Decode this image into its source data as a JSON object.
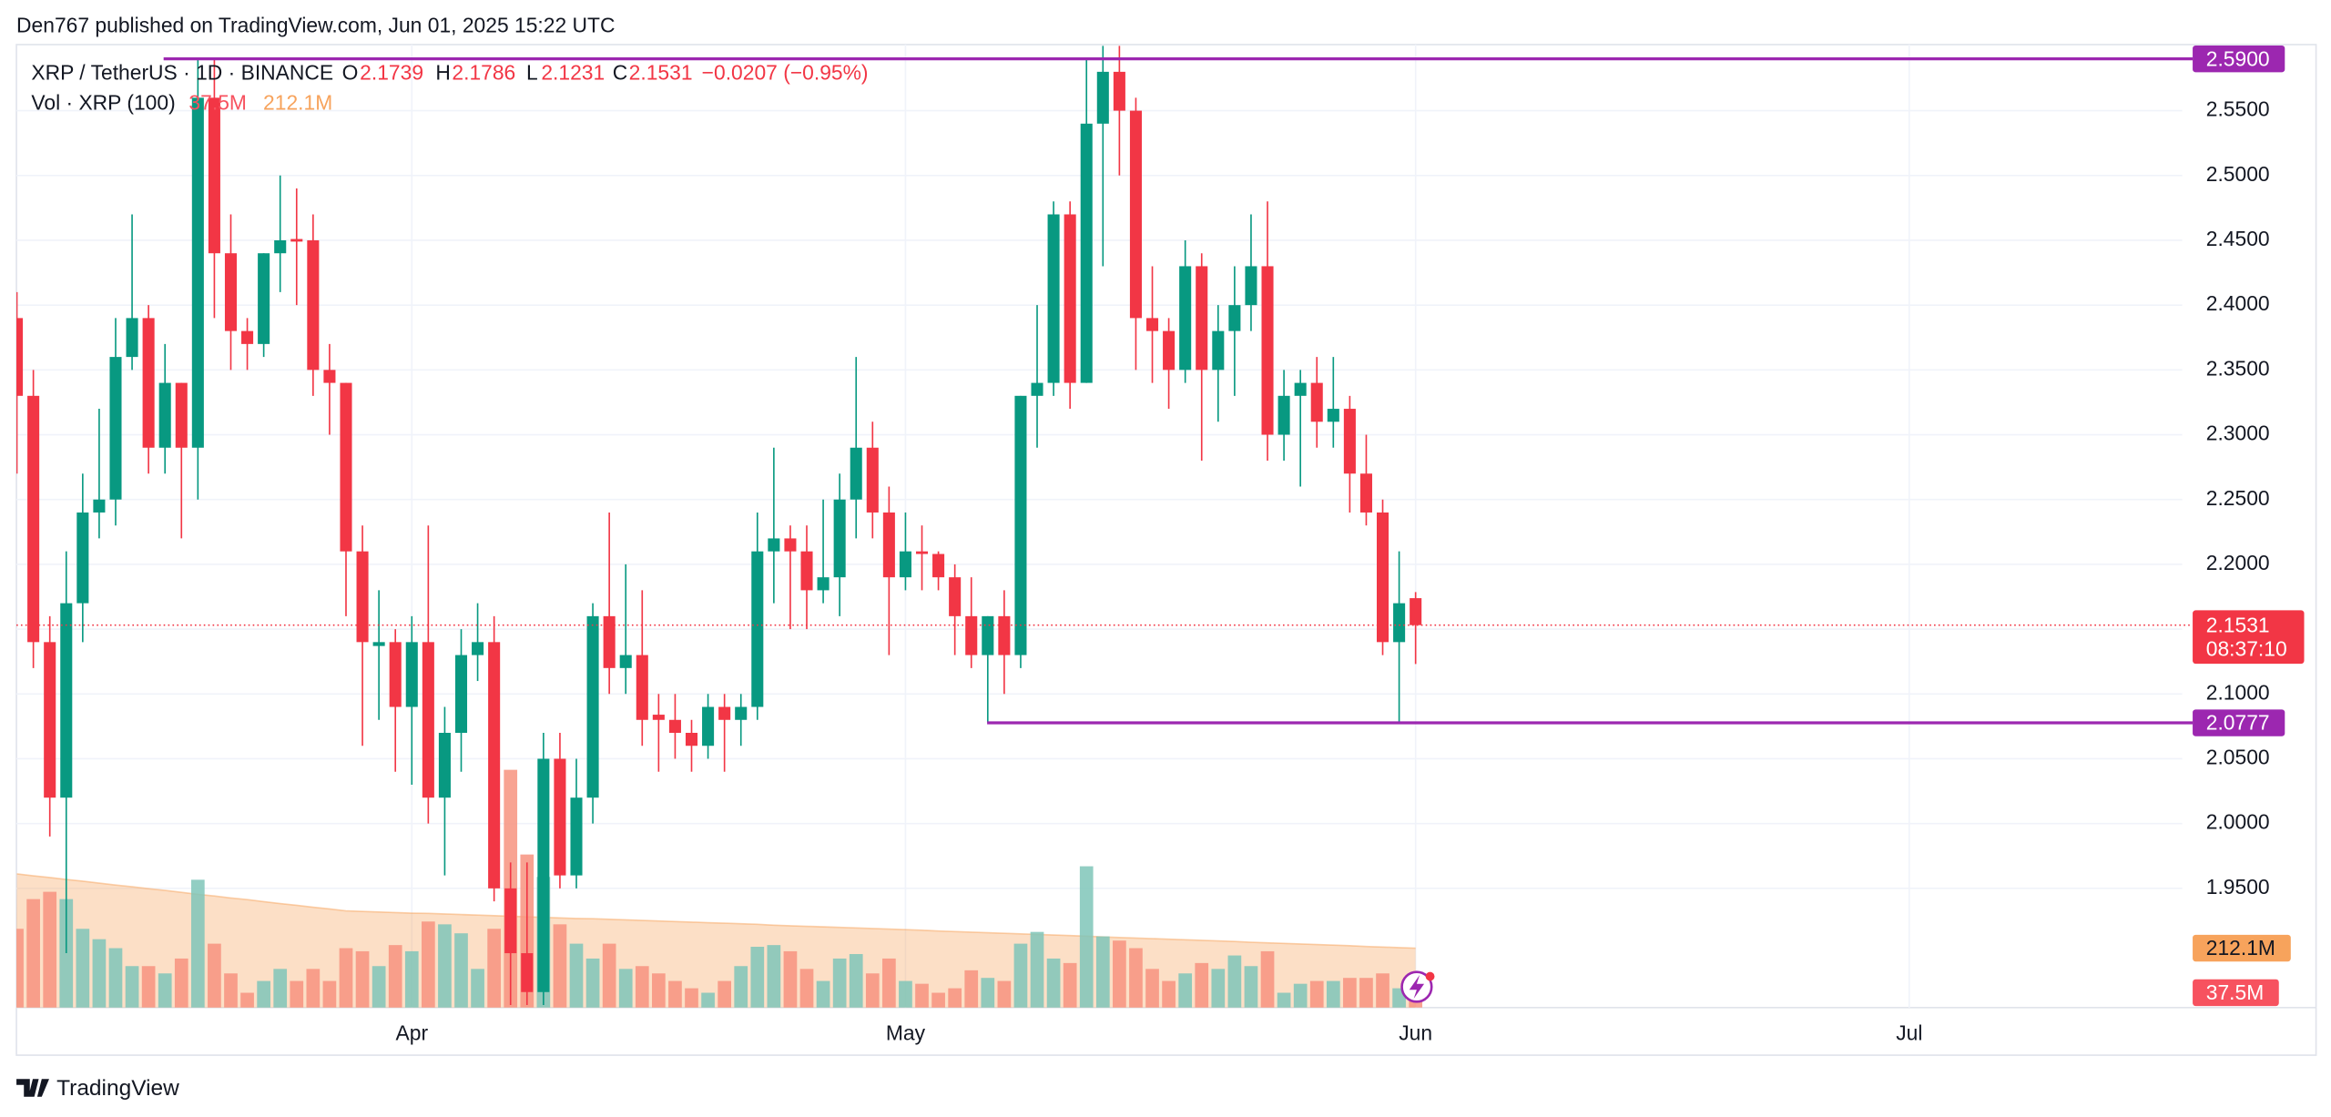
{
  "header": {
    "text": "Den767 published on TradingView.com, Jun 01, 2025 15:22 UTC"
  },
  "footer": {
    "brand": "TradingView"
  },
  "chart_data": {
    "type": "candlestick",
    "title": "XRP / TetherUS · 1D · BINANCE",
    "ohlc_letters": [
      "O",
      "H",
      "L",
      "C"
    ],
    "change_label": "−0.0207 (−0.95%)",
    "categories": [
      null,
      null,
      null,
      null,
      null,
      null,
      null,
      null,
      null,
      null,
      null,
      null,
      null,
      null,
      null,
      null,
      null,
      null,
      null,
      null,
      null,
      null,
      null,
      null,
      "Apr",
      null,
      null,
      null,
      null,
      null,
      null,
      null,
      null,
      null,
      null,
      null,
      null,
      null,
      null,
      null,
      null,
      null,
      null,
      null,
      null,
      null,
      null,
      null,
      null,
      null,
      null,
      null,
      null,
      null,
      "May",
      null,
      null,
      null,
      null,
      null,
      null,
      null,
      null,
      null,
      null,
      null,
      null,
      null,
      null,
      null,
      null,
      null,
      null,
      null,
      null,
      null,
      null,
      null,
      null,
      null,
      null,
      null,
      null,
      null,
      null,
      "Jun",
      null,
      null,
      null,
      null,
      null,
      null,
      null,
      null,
      null,
      null,
      null,
      null,
      null,
      null,
      null,
      null,
      null,
      null,
      null,
      null,
      null,
      null,
      null,
      null,
      null,
      null,
      null,
      null,
      null,
      "Jul",
      null,
      null,
      null,
      null,
      null,
      null,
      null,
      null,
      null,
      null,
      null,
      null,
      null,
      null,
      null,
      null
    ],
    "open": [
      2.39,
      2.33,
      2.14,
      2.02,
      2.17,
      2.24,
      2.25,
      2.36,
      2.39,
      2.29,
      2.34,
      2.29,
      2.56,
      2.44,
      2.38,
      2.37,
      2.44,
      2.451,
      2.45,
      2.35,
      2.34,
      2.21,
      2.137,
      2.14,
      2.09,
      2.14,
      2.02,
      2.07,
      2.13,
      2.14,
      1.95,
      1.9,
      1.87,
      2.05,
      1.96,
      2.02,
      2.16,
      2.12,
      2.13,
      2.084,
      2.08,
      2.07,
      2.06,
      2.09,
      2.08,
      2.09,
      2.21,
      2.22,
      2.21,
      2.18,
      2.19,
      2.25,
      2.29,
      2.24,
      2.19,
      2.21,
      2.208,
      2.19,
      2.16,
      2.13,
      2.16,
      2.13,
      2.33,
      2.34,
      2.47,
      2.34,
      2.54,
      2.58,
      2.55,
      2.39,
      2.38,
      2.35,
      2.43,
      2.35,
      2.38,
      2.4,
      2.43,
      2.3,
      2.33,
      2.34,
      2.31,
      2.32,
      2.27,
      2.24,
      2.14,
      2.1739,
      null,
      null,
      null,
      null,
      null,
      null,
      null,
      null,
      null,
      null,
      null,
      null,
      null,
      null,
      null,
      null,
      null,
      null,
      null,
      null,
      null,
      null,
      null,
      null,
      null,
      null,
      null,
      null,
      null,
      null,
      null,
      null,
      null,
      null,
      null,
      null,
      null,
      null,
      null,
      null,
      null,
      null,
      null,
      null,
      null,
      null
    ],
    "high": [
      2.41,
      2.35,
      2.16,
      2.21,
      2.27,
      2.32,
      2.39,
      2.47,
      2.4,
      2.37,
      2.34,
      2.59,
      2.59,
      2.47,
      2.39,
      2.44,
      2.5,
      2.49,
      2.47,
      2.37,
      2.34,
      2.23,
      2.18,
      2.15,
      2.16,
      2.23,
      2.09,
      2.15,
      2.17,
      2.16,
      1.97,
      1.97,
      2.07,
      2.07,
      2.05,
      2.17,
      2.24,
      2.2,
      2.18,
      2.1,
      2.1,
      2.08,
      2.1,
      2.1,
      2.1,
      2.24,
      2.29,
      2.23,
      2.23,
      2.25,
      2.27,
      2.36,
      2.31,
      2.26,
      2.24,
      2.23,
      2.21,
      2.2,
      2.19,
      2.16,
      2.18,
      2.33,
      2.4,
      2.48,
      2.48,
      2.59,
      2.6,
      2.6,
      2.56,
      2.43,
      2.39,
      2.45,
      2.44,
      2.4,
      2.43,
      2.47,
      2.48,
      2.35,
      2.35,
      2.36,
      2.36,
      2.33,
      2.3,
      2.25,
      2.21,
      2.1786,
      null,
      null,
      null,
      null,
      null,
      null,
      null,
      null,
      null,
      null,
      null,
      null,
      null,
      null,
      null,
      null,
      null,
      null,
      null,
      null,
      null,
      null,
      null,
      null,
      null,
      null,
      null,
      null,
      null,
      null,
      null,
      null,
      null,
      null,
      null,
      null,
      null,
      null,
      null,
      null,
      null,
      null,
      null,
      null,
      null,
      null
    ],
    "low": [
      2.27,
      2.12,
      1.99,
      1.9,
      2.14,
      2.22,
      2.23,
      2.35,
      2.27,
      2.27,
      2.22,
      2.25,
      2.39,
      2.35,
      2.35,
      2.36,
      2.41,
      2.4,
      2.33,
      2.3,
      2.16,
      2.06,
      2.08,
      2.04,
      2.03,
      2.0,
      1.96,
      2.04,
      2.11,
      1.94,
      1.86,
      1.86,
      1.86,
      1.95,
      1.95,
      2.0,
      2.1,
      2.1,
      2.06,
      2.04,
      2.05,
      2.04,
      2.05,
      2.04,
      2.06,
      2.08,
      2.17,
      2.15,
      2.15,
      2.17,
      2.16,
      2.22,
      2.22,
      2.13,
      2.18,
      2.18,
      2.18,
      2.13,
      2.12,
      2.078,
      2.1,
      2.12,
      2.29,
      2.33,
      2.32,
      2.34,
      2.43,
      2.5,
      2.35,
      2.34,
      2.32,
      2.34,
      2.28,
      2.31,
      2.33,
      2.38,
      2.28,
      2.28,
      2.26,
      2.29,
      2.29,
      2.24,
      2.23,
      2.13,
      2.078,
      2.1231,
      null,
      null,
      null,
      null,
      null,
      null,
      null,
      null,
      null,
      null,
      null,
      null,
      null,
      null,
      null,
      null,
      null,
      null,
      null,
      null,
      null,
      null,
      null,
      null,
      null,
      null,
      null,
      null,
      null,
      null,
      null,
      null,
      null,
      null,
      null,
      null,
      null,
      null,
      null,
      null,
      null,
      null,
      null,
      null,
      null,
      null
    ],
    "close": [
      2.33,
      2.14,
      2.02,
      2.17,
      2.24,
      2.25,
      2.36,
      2.39,
      2.29,
      2.34,
      2.29,
      2.56,
      2.44,
      2.38,
      2.37,
      2.44,
      2.45,
      2.449,
      2.35,
      2.34,
      2.21,
      2.14,
      2.14,
      2.09,
      2.14,
      2.02,
      2.07,
      2.13,
      2.14,
      1.95,
      1.9,
      1.87,
      2.05,
      1.96,
      2.02,
      2.16,
      2.12,
      2.13,
      2.08,
      2.08,
      2.07,
      2.06,
      2.09,
      2.08,
      2.09,
      2.21,
      2.22,
      2.21,
      2.18,
      2.19,
      2.25,
      2.29,
      2.24,
      2.19,
      2.21,
      2.208,
      2.19,
      2.16,
      2.13,
      2.16,
      2.13,
      2.33,
      2.34,
      2.47,
      2.34,
      2.54,
      2.58,
      2.55,
      2.39,
      2.38,
      2.35,
      2.43,
      2.35,
      2.38,
      2.4,
      2.43,
      2.3,
      2.33,
      2.34,
      2.31,
      2.32,
      2.27,
      2.24,
      2.14,
      2.17,
      2.1531,
      null,
      null,
      null,
      null,
      null,
      null,
      null,
      null,
      null,
      null,
      null,
      null,
      null,
      null,
      null,
      null,
      null,
      null,
      null,
      null,
      null,
      null,
      null,
      null,
      null,
      null,
      null,
      null,
      null,
      null,
      null,
      null,
      null,
      null,
      null,
      null,
      null,
      null,
      null,
      null,
      null,
      null,
      null,
      null,
      null,
      null
    ],
    "up_color": "#089981",
    "down_color": "#f23645",
    "ylim": [
      1.858,
      2.601
    ],
    "yticks": [
      {
        "value": 1.95,
        "label": "1.9500"
      },
      {
        "value": 2.0,
        "label": "2.0000"
      },
      {
        "value": 2.05,
        "label": "2.0500"
      },
      {
        "value": 2.1,
        "label": "2.1000"
      },
      {
        "value": 2.15,
        "label": "2.1500"
      },
      {
        "value": 2.2,
        "label": "2.2000"
      },
      {
        "value": 2.25,
        "label": "2.2500"
      },
      {
        "value": 2.3,
        "label": "2.3000"
      },
      {
        "value": 2.35,
        "label": "2.3500"
      },
      {
        "value": 2.4,
        "label": "2.4000"
      },
      {
        "value": 2.45,
        "label": "2.4500"
      },
      {
        "value": 2.5,
        "label": "2.5000"
      },
      {
        "value": 2.55,
        "label": "2.5500"
      }
    ],
    "grid": true,
    "price_lines": [
      {
        "value": 2.59,
        "label": "2.5900",
        "color": "#9c27b0"
      },
      {
        "value": 2.0777,
        "label": "2.0777",
        "color": "#9c27b0"
      }
    ],
    "countdown": "08:37:10",
    "y2lim": [
      0,
      3434
    ],
    "volume": {
      "name": "Vol · XRP (100)",
      "up_color": "#7fc6b9",
      "down_color": "#f7937f",
      "values": [
        281,
        387,
        413,
        387,
        281,
        244,
        212,
        148,
        148,
        122,
        175,
        456,
        228,
        122,
        53,
        95,
        138,
        95,
        138,
        95,
        212,
        201,
        148,
        223,
        201,
        307,
        297,
        265,
        138,
        281,
        848,
        546,
        466,
        297,
        228,
        175,
        228,
        138,
        148,
        122,
        95,
        69,
        53,
        95,
        148,
        217,
        223,
        201,
        138,
        95,
        175,
        191,
        122,
        175,
        95,
        85,
        53,
        69,
        133,
        106,
        95,
        228,
        270,
        175,
        159,
        504,
        254,
        239,
        212,
        138,
        95,
        122,
        159,
        138,
        186,
        148,
        201,
        53,
        85,
        95,
        95,
        106,
        106,
        122,
        69,
        37.5,
        null,
        null,
        null,
        null,
        null,
        null,
        null,
        null,
        null,
        null,
        null,
        null,
        null,
        null,
        null,
        null,
        null,
        null,
        null,
        null,
        null,
        null,
        null,
        null,
        null,
        null,
        null,
        null,
        null,
        null,
        null,
        null,
        null,
        null,
        null,
        null,
        null,
        null,
        null,
        null,
        null,
        null,
        null,
        null,
        null,
        null
      ],
      "value_labels": [
        null,
        null,
        null,
        null,
        null,
        null,
        null,
        null,
        null,
        null,
        null,
        null,
        null,
        null,
        null,
        null,
        null,
        null,
        null,
        null,
        null,
        null,
        null,
        null,
        null,
        null,
        null,
        null,
        null,
        null,
        null,
        null,
        null,
        null,
        null,
        null,
        null,
        null,
        null,
        null,
        null,
        null,
        null,
        null,
        null,
        null,
        null,
        null,
        null,
        null,
        null,
        null,
        null,
        null,
        null,
        null,
        null,
        null,
        null,
        null,
        null,
        null,
        null,
        null,
        null,
        null,
        null,
        null,
        null,
        null,
        null,
        null,
        null,
        null,
        null,
        null,
        null,
        null,
        null,
        null,
        null,
        null,
        null,
        null,
        null,
        "37.5M",
        null,
        null,
        null,
        null,
        null,
        null,
        null,
        null,
        null,
        null,
        null,
        null,
        null,
        null,
        null,
        null,
        null,
        null,
        null,
        null,
        null,
        null,
        null,
        null,
        null,
        null,
        null,
        null,
        null,
        null,
        null,
        null,
        null,
        null,
        null,
        null,
        null,
        null,
        null,
        null,
        null,
        null,
        null,
        null,
        null,
        null
      ]
    },
    "volume_ma": {
      "color": "#f7a35c",
      "values": [
        477,
        470,
        464,
        457,
        451,
        444,
        437,
        431,
        424,
        418,
        411,
        404,
        398,
        391,
        385,
        378,
        371,
        365,
        358,
        352,
        345,
        343,
        341,
        339,
        337,
        336,
        334,
        332,
        330,
        328,
        326,
        324,
        322,
        320,
        318,
        317,
        315,
        313,
        311,
        309,
        307,
        305,
        303,
        301,
        299,
        297,
        294,
        292,
        290,
        288,
        286,
        284,
        282,
        280,
        278,
        276,
        273,
        271,
        269,
        267,
        265,
        263,
        261,
        259,
        257,
        255,
        252,
        250,
        248,
        246,
        244,
        242,
        240,
        238,
        236,
        233,
        231,
        229,
        227,
        225,
        223,
        221,
        218,
        216,
        214,
        212.1,
        null,
        null,
        null,
        null,
        null,
        null,
        null,
        null,
        null,
        null,
        null,
        null,
        null,
        null,
        null,
        null,
        null,
        null,
        null,
        null,
        null,
        null,
        null,
        null,
        null,
        null,
        null,
        null,
        null,
        null,
        null,
        null,
        null,
        null,
        null,
        null,
        null,
        null,
        null,
        null,
        null,
        null,
        null,
        null,
        null,
        null
      ],
      "value_labels": [
        null,
        null,
        null,
        null,
        null,
        null,
        null,
        null,
        null,
        null,
        null,
        null,
        null,
        null,
        null,
        null,
        null,
        null,
        null,
        null,
        null,
        null,
        null,
        null,
        null,
        null,
        null,
        null,
        null,
        null,
        null,
        null,
        null,
        null,
        null,
        null,
        null,
        null,
        null,
        null,
        null,
        null,
        null,
        null,
        null,
        null,
        null,
        null,
        null,
        null,
        null,
        null,
        null,
        null,
        null,
        null,
        null,
        null,
        null,
        null,
        null,
        null,
        null,
        null,
        null,
        null,
        null,
        null,
        null,
        null,
        null,
        null,
        null,
        null,
        null,
        null,
        null,
        null,
        null,
        null,
        null,
        null,
        null,
        null,
        null,
        "212.1M",
        null,
        null,
        null,
        null,
        null,
        null,
        null,
        null,
        null,
        null,
        null,
        null,
        null,
        null,
        null,
        null,
        null,
        null,
        null,
        null,
        null,
        null,
        null,
        null,
        null,
        null,
        null,
        null,
        null,
        null,
        null,
        null,
        null,
        null,
        null,
        null,
        null,
        null,
        null,
        null,
        null,
        null,
        null,
        null,
        null,
        null
      ]
    }
  }
}
